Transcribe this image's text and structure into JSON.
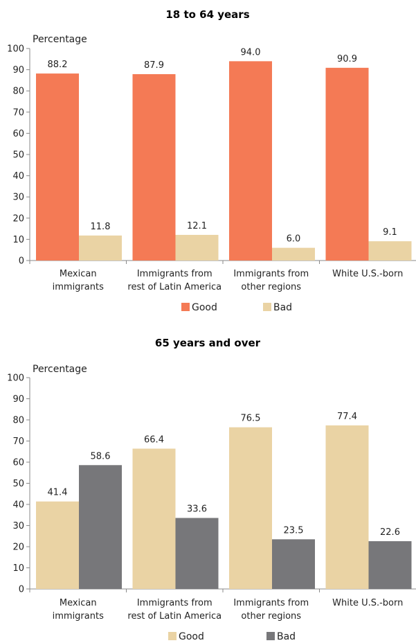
{
  "chart_data": [
    {
      "type": "bar",
      "title": "18 to 64 years",
      "ylabel": "Percentage",
      "ylim": [
        0,
        100
      ],
      "yticks": [
        0,
        10,
        20,
        30,
        40,
        50,
        60,
        70,
        80,
        90,
        100
      ],
      "categories": [
        [
          "Mexican",
          "immigrants"
        ],
        [
          "Immigrants from",
          "rest of Latin America"
        ],
        [
          "Immigrants from",
          "other regions"
        ],
        [
          "White U.S.-born"
        ]
      ],
      "series": [
        {
          "name": "Good",
          "color": "#f47a55",
          "values": [
            88.2,
            87.9,
            94.0,
            90.9
          ],
          "labels": [
            "88.2",
            "87.9",
            "94.0",
            "90.9"
          ]
        },
        {
          "name": "Bad",
          "color": "#ead3a4",
          "values": [
            11.8,
            12.1,
            6.0,
            9.1
          ],
          "labels": [
            "11.8",
            "12.1",
            "6.0",
            "9.1"
          ]
        }
      ],
      "legend": "bottom"
    },
    {
      "type": "bar",
      "title": "65 years and over",
      "ylabel": "Percentage",
      "ylim": [
        0,
        100
      ],
      "yticks": [
        0,
        10,
        20,
        30,
        40,
        50,
        60,
        70,
        80,
        90,
        100
      ],
      "categories": [
        [
          "Mexican",
          "immigrants"
        ],
        [
          "Immigrants from",
          "rest of Latin America"
        ],
        [
          "Immigrants from",
          "other regions"
        ],
        [
          "White U.S.-born"
        ]
      ],
      "series": [
        {
          "name": "Good",
          "color": "#ead3a4",
          "values": [
            41.4,
            66.4,
            76.5,
            77.4
          ],
          "labels": [
            "41.4",
            "66.4",
            "76.5",
            "77.4"
          ]
        },
        {
          "name": "Bad",
          "color": "#77777a",
          "values": [
            58.6,
            33.6,
            23.5,
            22.6
          ],
          "labels": [
            "58.6",
            "33.6",
            "23.5",
            "22.6"
          ]
        }
      ],
      "legend": "bottom"
    }
  ]
}
